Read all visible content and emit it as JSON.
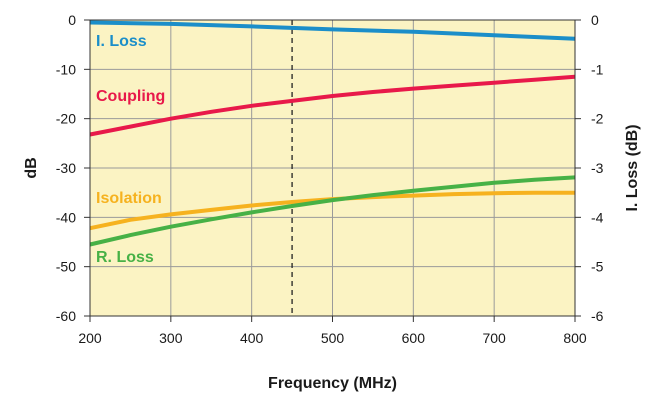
{
  "chart_data": {
    "type": "line",
    "xlabel": "Frequency (MHz)",
    "ylabel": "dB",
    "y2label": "I. Loss (dB)",
    "xlim": [
      200,
      800
    ],
    "ylim": [
      -60,
      0
    ],
    "y2lim": [
      -6,
      0
    ],
    "xticks": [
      200,
      300,
      400,
      500,
      600,
      700,
      800
    ],
    "yticks": [
      0,
      -10,
      -20,
      -30,
      -40,
      -50,
      -60
    ],
    "y2ticks": [
      0,
      -1,
      -2,
      -3,
      -4,
      -5,
      -6
    ],
    "marker_line_x": 450,
    "plot_background": "#fbf3c3",
    "series": [
      {
        "name": "I. Loss",
        "axis": "right",
        "color": "#1b8ec9",
        "x": [
          200,
          300,
          400,
          500,
          600,
          700,
          800
        ],
        "y": [
          -0.05,
          -0.08,
          -0.13,
          -0.19,
          -0.24,
          -0.31,
          -0.38
        ]
      },
      {
        "name": "Coupling",
        "axis": "left",
        "color": "#e8194a",
        "x": [
          200,
          250,
          300,
          350,
          400,
          450,
          500,
          550,
          600,
          650,
          700,
          750,
          800
        ],
        "y": [
          -23.2,
          -21.6,
          -20.0,
          -18.6,
          -17.4,
          -16.4,
          -15.4,
          -14.6,
          -13.9,
          -13.3,
          -12.7,
          -12.1,
          -11.5
        ]
      },
      {
        "name": "Isolation",
        "axis": "left",
        "color": "#f6b21f",
        "x": [
          200,
          250,
          300,
          350,
          400,
          450,
          500,
          550,
          600,
          650,
          700,
          750,
          800
        ],
        "y": [
          -42.2,
          -40.5,
          -39.4,
          -38.5,
          -37.6,
          -36.9,
          -36.3,
          -35.9,
          -35.6,
          -35.3,
          -35.1,
          -35.0,
          -35.0
        ]
      },
      {
        "name": "R. Loss",
        "axis": "left",
        "color": "#47b146",
        "x": [
          200,
          250,
          300,
          350,
          400,
          450,
          500,
          550,
          600,
          650,
          700,
          750,
          800
        ],
        "y": [
          -45.5,
          -43.6,
          -41.9,
          -40.4,
          -39.0,
          -37.7,
          -36.5,
          -35.5,
          -34.6,
          -33.8,
          -33.0,
          -32.4,
          -31.9
        ]
      }
    ]
  }
}
